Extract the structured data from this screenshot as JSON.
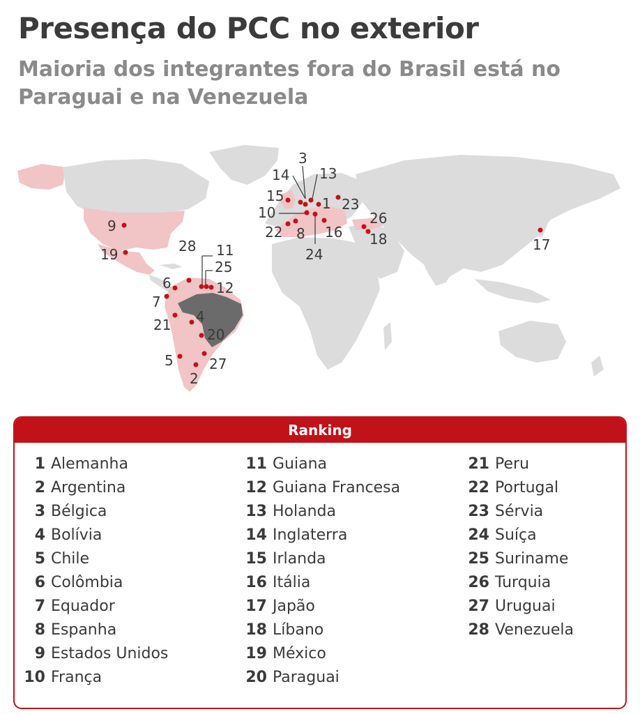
{
  "title": "Presença do PCC no exterior",
  "subtitle": "Maioria dos integrantes fora do Brasil está no Paraguai e na Venezuela",
  "colors": {
    "accent": "#c1121a",
    "country_with_presence": "#f1c4c6",
    "brazil": "#6b6b6b",
    "land": "#dcdcdc",
    "dot": "#c1121a"
  },
  "map": {
    "highlighted_region": "Brasil",
    "markers": [
      {
        "n": "1",
        "country": "Alemanha"
      },
      {
        "n": "2",
        "country": "Argentina"
      },
      {
        "n": "3",
        "country": "Bélgica"
      },
      {
        "n": "4",
        "country": "Bolívia"
      },
      {
        "n": "5",
        "country": "Chile"
      },
      {
        "n": "6",
        "country": "Colômbia"
      },
      {
        "n": "7",
        "country": "Equador"
      },
      {
        "n": "8",
        "country": "Espanha"
      },
      {
        "n": "9",
        "country": "Estados Unidos"
      },
      {
        "n": "10",
        "country": "França"
      },
      {
        "n": "11",
        "country": "Guiana"
      },
      {
        "n": "12",
        "country": "Guiana Francesa"
      },
      {
        "n": "13",
        "country": "Holanda"
      },
      {
        "n": "14",
        "country": "Inglaterra"
      },
      {
        "n": "15",
        "country": "Irlanda"
      },
      {
        "n": "16",
        "country": "Itália"
      },
      {
        "n": "17",
        "country": "Japão"
      },
      {
        "n": "18",
        "country": "Líbano"
      },
      {
        "n": "19",
        "country": "México"
      },
      {
        "n": "20",
        "country": "Paraguai"
      },
      {
        "n": "21",
        "country": "Peru"
      },
      {
        "n": "22",
        "country": "Portugal"
      },
      {
        "n": "23",
        "country": "Sérvia"
      },
      {
        "n": "24",
        "country": "Suíça"
      },
      {
        "n": "25",
        "country": "Suriname"
      },
      {
        "n": "26",
        "country": "Turquia"
      },
      {
        "n": "27",
        "country": "Uruguai"
      },
      {
        "n": "28",
        "country": "Venezuela"
      }
    ]
  },
  "ranking": {
    "header": "Ranking",
    "columns": [
      [
        {
          "n": "1",
          "name": "Alemanha"
        },
        {
          "n": "2",
          "name": "Argentina"
        },
        {
          "n": "3",
          "name": "Bélgica"
        },
        {
          "n": "4",
          "name": "Bolívia"
        },
        {
          "n": "5",
          "name": "Chile"
        },
        {
          "n": "6",
          "name": "Colômbia"
        },
        {
          "n": "7",
          "name": "Equador"
        },
        {
          "n": "8",
          "name": "Espanha"
        },
        {
          "n": "9",
          "name": "Estados Unidos"
        },
        {
          "n": "10",
          "name": "França"
        }
      ],
      [
        {
          "n": "11",
          "name": "Guiana"
        },
        {
          "n": "12",
          "name": "Guiana Francesa"
        },
        {
          "n": "13",
          "name": "Holanda"
        },
        {
          "n": "14",
          "name": "Inglaterra"
        },
        {
          "n": "15",
          "name": "Irlanda"
        },
        {
          "n": "16",
          "name": "Itália"
        },
        {
          "n": "17",
          "name": "Japão"
        },
        {
          "n": "18",
          "name": "Líbano"
        },
        {
          "n": "19",
          "name": "México"
        },
        {
          "n": "20",
          "name": "Paraguai"
        }
      ],
      [
        {
          "n": "21",
          "name": "Peru"
        },
        {
          "n": "22",
          "name": "Portugal"
        },
        {
          "n": "23",
          "name": "Sérvia"
        },
        {
          "n": "24",
          "name": "Suíça"
        },
        {
          "n": "25",
          "name": "Suriname"
        },
        {
          "n": "26",
          "name": "Turquia"
        },
        {
          "n": "27",
          "name": "Uruguai"
        },
        {
          "n": "28",
          "name": "Venezuela"
        }
      ]
    ]
  }
}
